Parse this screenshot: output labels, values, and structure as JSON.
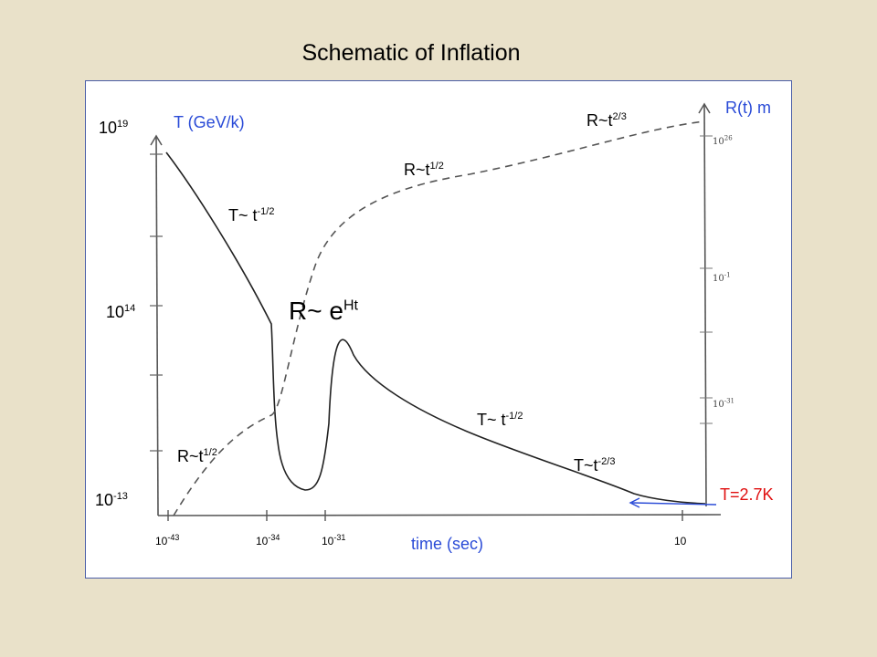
{
  "chart_data": {
    "type": "line",
    "title": "Schematic of Inflation",
    "xlabel": "time (sec)",
    "y_left_label": "T (GeV/k)",
    "y_right_label": "R(t) m",
    "x_ticks": [
      {
        "base": "10",
        "exp": "-43"
      },
      {
        "base": "10",
        "exp": "-34"
      },
      {
        "base": "10",
        "exp": "-31"
      },
      {
        "base": "10",
        "exp": ""
      }
    ],
    "y_left_ticks": [
      {
        "base": "10",
        "exp": "19"
      },
      {
        "base": "10",
        "exp": "14"
      },
      {
        "base": "10",
        "exp": "-13"
      }
    ],
    "y_right_ticks": [
      {
        "base": "10",
        "exp": "26"
      },
      {
        "base": "10",
        "exp": "-1"
      },
      {
        "base": "10",
        "exp": "-31"
      }
    ],
    "annotations": {
      "T_early": {
        "base": "T~ t",
        "exp": "-1/2"
      },
      "R_early": {
        "base": "R~t",
        "exp": "1/2"
      },
      "inflation": {
        "base": "R~ e",
        "exp": "Ht"
      },
      "R_mid": {
        "base": "R~t",
        "exp": "1/2"
      },
      "R_late": {
        "base": "R~t",
        "exp": "2/3"
      },
      "T_mid": {
        "base": "T~ t",
        "exp": "-1/2"
      },
      "T_late": {
        "base": "T~t",
        "exp": "-2/3"
      },
      "T_now": "T=2.7K"
    },
    "series": [
      {
        "style": "solid"
      },
      {
        "style": "dashed"
      }
    ],
    "colors": {
      "right_axis_label": "#2a4bd7",
      "today_label": "#e01010",
      "arrow": "#2a4bd7",
      "frame": "#4a5ea8"
    }
  }
}
